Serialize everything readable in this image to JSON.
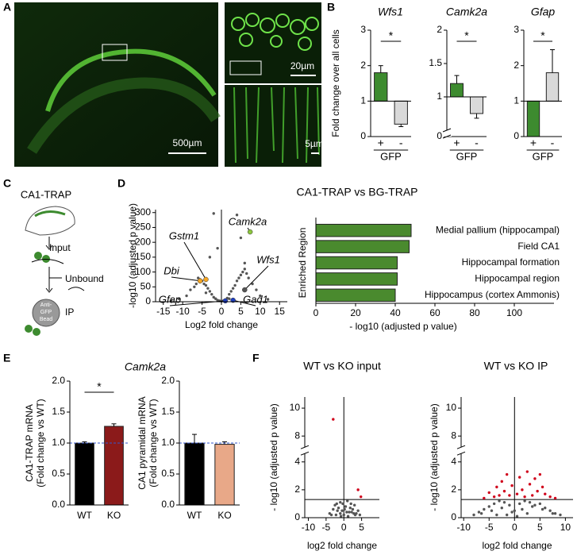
{
  "panel_labels": [
    "A",
    "B",
    "C",
    "D",
    "E",
    "F"
  ],
  "scale_bars": [
    "500µm",
    "20µm",
    "5µm"
  ],
  "diagram": {
    "title": "CA1-TRAP",
    "input": "Input",
    "unbound": "Unbound",
    "ip": "IP",
    "bead": [
      "Anti-",
      "GFP",
      "Bead"
    ]
  },
  "chart_data": [
    {
      "type": "bar",
      "title": "Wfs1",
      "italic_title": true,
      "ylabel": "Fold change over all cells",
      "xlabel": "GFP",
      "categories": [
        "+",
        "-"
      ],
      "values": [
        1.8,
        0.35
      ],
      "errors": [
        0.2,
        0.07
      ],
      "base": 1,
      "colors": [
        "#3d8b2f",
        "#d9d9d9"
      ],
      "ylim": [
        0,
        3
      ],
      "yticks": [
        0,
        1,
        2,
        3
      ],
      "annotation": "*"
    },
    {
      "type": "bar",
      "title": "Camk2a",
      "italic_title": true,
      "xlabel": "GFP",
      "categories": [
        "+",
        "-"
      ],
      "values": [
        1.2,
        0.75
      ],
      "errors": [
        0.12,
        0.07
      ],
      "base": 1,
      "colors": [
        "#3d8b2f",
        "#d9d9d9"
      ],
      "ylim": [
        0,
        2
      ],
      "ybreak": [
        0,
        0.5
      ],
      "yticks": [
        0,
        1,
        1.5,
        2
      ],
      "annotation": "*"
    },
    {
      "type": "bar",
      "title": "Gfap",
      "italic_title": true,
      "xlabel": "GFP",
      "categories": [
        "+",
        "-"
      ],
      "values": [
        0,
        1.8
      ],
      "errors": [
        null,
        0.65
      ],
      "base": 1,
      "colors": [
        "#3d8b2f",
        "#d9d9d9"
      ],
      "ylim": [
        0,
        3
      ],
      "yticks": [
        0,
        1,
        2,
        3
      ],
      "annotation": "*"
    },
    {
      "type": "scatter",
      "title": "CA1-TRAP vs BG-TRAP",
      "xlabel": "Log2 fold change",
      "ylabel": "-log10 (adjusted p value)",
      "xlim": [
        -17,
        17
      ],
      "xticks": [
        -15,
        -10,
        -5,
        0,
        5,
        10,
        15
      ],
      "ylim": [
        0,
        310
      ],
      "yticks": [
        0,
        50,
        100,
        150,
        200,
        250,
        300
      ],
      "vline": 0,
      "series": [
        {
          "color": "#555555",
          "x": [
            -2,
            -1,
            -1.5,
            -2.5,
            -3,
            -3.5,
            -4,
            -4.5,
            -5,
            -5.5,
            -6,
            -6.5,
            -7,
            -8,
            -9,
            -11,
            -13,
            1,
            1.5,
            2,
            2.5,
            3,
            3.5,
            4,
            4.5,
            5,
            5.5,
            6,
            6.5,
            7,
            8,
            9,
            10,
            12,
            0,
            0.5,
            -0.5,
            -2,
            4,
            5,
            -4,
            -1,
            2,
            6,
            -3
          ],
          "y": [
            15,
            5,
            10,
            25,
            35,
            45,
            55,
            60,
            70,
            75,
            80,
            60,
            50,
            40,
            20,
            10,
            5,
            5,
            12,
            25,
            35,
            45,
            55,
            70,
            80,
            90,
            100,
            110,
            95,
            80,
            60,
            40,
            20,
            8,
            2,
            3,
            3,
            297,
            292,
            215,
            30,
            180,
            10,
            130,
            150
          ]
        }
      ],
      "highlights": [
        {
          "label": "Camk2a",
          "x": 7.4,
          "y": 235,
          "color": "#8dc63f"
        },
        {
          "label": "Gstm1",
          "x": -4,
          "y": 75,
          "color": "#f5a623"
        },
        {
          "label": "Dbi",
          "x": -5.5,
          "y": 70,
          "color": "#f5a623"
        },
        {
          "label": "Gfap",
          "x": 1,
          "y": 3,
          "color": "#1f3fbf"
        },
        {
          "label": "Wfs1",
          "x": 6,
          "y": 40,
          "color": "#555555"
        },
        {
          "label": "Gad1",
          "x": 3,
          "y": 5,
          "color": "#1f3fbf"
        }
      ]
    },
    {
      "type": "barh",
      "ylabel": "Enriched Region",
      "xlabel": "- log10 (adjusted p value)",
      "categories": [
        "Medial pallium (hippocampal)",
        "Field CA1",
        "Hippocampal formation",
        "Hippocampal region",
        "Hippocampus (cortex Ammonis)"
      ],
      "values": [
        48,
        47,
        41,
        41,
        40
      ],
      "color": "#4a8a2e",
      "xlim": [
        0,
        120
      ],
      "xticks": [
        0,
        20,
        40,
        60,
        80,
        100
      ]
    },
    {
      "type": "bar",
      "title": "Camk2a",
      "italic_title": true,
      "ylabel": [
        "CA1-TRAP mRNA",
        "(Fold change vs WT)"
      ],
      "categories": [
        "WT",
        "KO"
      ],
      "values": [
        1.0,
        1.27
      ],
      "errors": [
        0.02,
        0.04
      ],
      "colors": [
        "#000000",
        "#8b1a1a"
      ],
      "ylim": [
        0,
        2
      ],
      "yticks": [
        {
          "value": 0,
          "label": "0.0"
        },
        {
          "value": 0.5,
          "label": "0.5"
        },
        {
          "value": 1,
          "label": "1.0"
        },
        {
          "value": 1.5,
          "label": "1.5"
        },
        {
          "value": 2,
          "label": "2.0"
        }
      ],
      "reference_line": 1,
      "annotation": "*"
    },
    {
      "type": "bar",
      "ylabel": [
        "CA1 pyramidal mRNA",
        "(Fold change vs WT)"
      ],
      "categories": [
        "WT",
        "KO"
      ],
      "values": [
        1.0,
        0.98
      ],
      "errors": [
        0.14,
        0.04
      ],
      "colors": [
        "#000000",
        "#e8a888"
      ],
      "ylim": [
        0,
        2
      ],
      "yticks": [
        {
          "value": 0,
          "label": "0.0"
        },
        {
          "value": 0.5,
          "label": "0.5"
        },
        {
          "value": 1,
          "label": "1.0"
        },
        {
          "value": 1.5,
          "label": "1.5"
        },
        {
          "value": 2,
          "label": "2.0"
        }
      ],
      "reference_line": 1
    },
    {
      "type": "scatter",
      "title": "WT vs KO input",
      "xlabel": "log2 fold change",
      "ylabel": "- log10 (adjusted p value)",
      "xlim": [
        -11,
        10
      ],
      "xticks": [
        -10,
        -5,
        0,
        5
      ],
      "ylim": [
        0,
        10.8
      ],
      "ybreak": [
        4.6,
        7.2
      ],
      "yticks": [
        0,
        2,
        4,
        8,
        10
      ],
      "hline": 1.3,
      "vline": 0,
      "series": [
        {
          "color": "#555555",
          "x": [
            -4,
            -3,
            -2.5,
            -2,
            -1.5,
            -1,
            -0.5,
            0,
            0.5,
            1,
            1.5,
            2,
            2.5,
            3,
            3.5,
            4,
            4.5,
            -3.5,
            -1,
            0.2,
            1.2,
            2.2,
            -2.2,
            0.8,
            -0.3,
            3.2,
            -1.8,
            1.8,
            2.8,
            -0.8
          ],
          "y": [
            0.3,
            0.6,
            0.9,
            1.0,
            0.7,
            1.1,
            0.5,
            0.2,
            0.8,
            1.2,
            0.4,
            1.0,
            0.6,
            0.9,
            0.3,
            0.5,
            0.2,
            0.2,
            0.3,
            0.6,
            0.1,
            0.4,
            0.2,
            0.4,
            1.0,
            0.2,
            0.5,
            0.7,
            0.3,
            0.1
          ]
        },
        {
          "color": "#d0021b",
          "x": [
            -3,
            4,
            4.8
          ],
          "y": [
            9.2,
            2.0,
            1.5
          ]
        }
      ]
    },
    {
      "type": "scatter",
      "title": "WT vs KO IP",
      "xlabel": "log2 fold change",
      "ylabel": "- log10 (adjusted p value)",
      "xlim": [
        -10.5,
        11.5
      ],
      "xticks": [
        -10,
        -5,
        0,
        5,
        10
      ],
      "ylim": [
        0,
        10.8
      ],
      "ybreak": [
        4.6,
        7.2
      ],
      "yticks": [
        0,
        2,
        4,
        8,
        10
      ],
      "hline": 1.3,
      "vline": 0,
      "series": [
        {
          "color": "#555555",
          "x": [
            -8,
            -7,
            -6,
            -5,
            -4,
            -3,
            -2,
            -1,
            0,
            1,
            2,
            3,
            4,
            5,
            6,
            7,
            8,
            9,
            -6.5,
            -4.5,
            -2.5,
            -0.5,
            1.5,
            3.5,
            5.5,
            7.5,
            -3.5,
            2.5,
            0.5,
            -1.5
          ],
          "y": [
            0.2,
            0.4,
            0.6,
            0.8,
            1.0,
            1.2,
            1.1,
            0.9,
            0.5,
            1.0,
            1.2,
            1.1,
            0.9,
            1.0,
            0.7,
            0.5,
            0.3,
            0.2,
            0.3,
            0.5,
            0.7,
            0.4,
            0.6,
            0.8,
            0.6,
            0.3,
            0.2,
            0.3,
            0.1,
            0.2
          ]
        },
        {
          "color": "#d0021b",
          "x": [
            -6,
            -5,
            -4,
            -3.5,
            -3,
            -2.5,
            -2,
            -1.5,
            -1,
            -0.5,
            0.5,
            1,
            1.5,
            2,
            2.5,
            3,
            3.5,
            4,
            4.5,
            5,
            5.5,
            6,
            7,
            8
          ],
          "y": [
            1.4,
            1.8,
            1.5,
            2.2,
            1.6,
            2.6,
            1.9,
            3.1,
            1.6,
            2.3,
            1.7,
            2.9,
            2.0,
            1.5,
            3.3,
            2.4,
            1.6,
            2.8,
            1.9,
            3.1,
            2.2,
            1.7,
            1.5,
            1.4
          ]
        }
      ]
    }
  ]
}
